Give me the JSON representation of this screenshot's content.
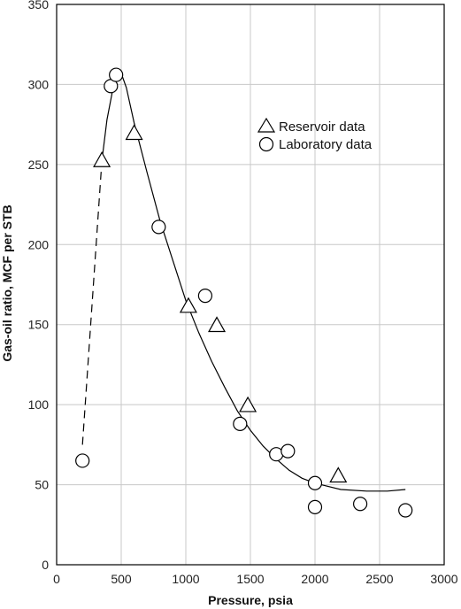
{
  "chart_data": {
    "type": "scatter",
    "xlabel": "Pressure, psia",
    "ylabel": "Gas-oil ratio, MCF per STB",
    "xlim": [
      0,
      3000
    ],
    "ylim": [
      0,
      350
    ],
    "xticks": [
      0,
      500,
      1000,
      1500,
      2000,
      2500,
      3000
    ],
    "yticks": [
      0,
      50,
      100,
      150,
      200,
      250,
      300,
      350
    ],
    "x_tick_labels": [
      "0",
      "500",
      "1000",
      "1500",
      "2000",
      "2500",
      "3000"
    ],
    "y_tick_labels": [
      "0",
      "50",
      "100",
      "150",
      "200",
      "250",
      "300",
      "350"
    ],
    "grid": true,
    "legend_position": "top-right",
    "series": [
      {
        "name": "Reservoir data",
        "marker": "triangle",
        "points": [
          [
            350,
            252
          ],
          [
            600,
            269
          ],
          [
            1020,
            161
          ],
          [
            1240,
            149
          ],
          [
            1480,
            99
          ],
          [
            2180,
            55
          ]
        ]
      },
      {
        "name": "Laboratory data",
        "marker": "circle",
        "points": [
          [
            200,
            65
          ],
          [
            420,
            299
          ],
          [
            460,
            306
          ],
          [
            790,
            211
          ],
          [
            1150,
            168
          ],
          [
            1420,
            88
          ],
          [
            1700,
            69
          ],
          [
            1790,
            71
          ],
          [
            2000,
            51
          ],
          [
            2000,
            36
          ],
          [
            2350,
            38
          ],
          [
            2700,
            34
          ]
        ]
      }
    ],
    "fit_curve": {
      "solid": [
        [
          350,
          252
        ],
        [
          390,
          278
        ],
        [
          430,
          295
        ],
        [
          470,
          305
        ],
        [
          500,
          307
        ],
        [
          540,
          298
        ],
        [
          600,
          276
        ],
        [
          700,
          245
        ],
        [
          800,
          215
        ],
        [
          900,
          190
        ],
        [
          1000,
          165
        ],
        [
          1100,
          145
        ],
        [
          1200,
          127
        ],
        [
          1300,
          111
        ],
        [
          1400,
          96
        ],
        [
          1500,
          84
        ],
        [
          1600,
          74
        ],
        [
          1700,
          66
        ],
        [
          1800,
          59
        ],
        [
          1900,
          54
        ],
        [
          2000,
          51
        ],
        [
          2200,
          47
        ],
        [
          2400,
          46
        ],
        [
          2560,
          46
        ],
        [
          2700,
          47
        ]
      ],
      "dashed": [
        [
          200,
          75
        ],
        [
          350,
          252
        ]
      ]
    }
  }
}
